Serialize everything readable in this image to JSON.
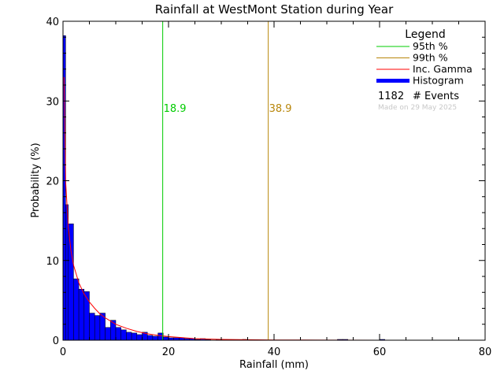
{
  "chart_data": {
    "type": "bar",
    "title": "Rainfall at WestMont Station during Year",
    "xlabel": "Rainfall (mm)",
    "ylabel": "Probability (%)",
    "xlim": [
      0,
      80
    ],
    "ylim": [
      0,
      40
    ],
    "x_ticks": [
      "0",
      "20",
      "40",
      "60",
      "80"
    ],
    "y_ticks": [
      "0",
      "10",
      "20",
      "30",
      "40"
    ],
    "grid": false,
    "legend_position": "top-right",
    "bin_width": 1,
    "histogram": {
      "name": "Histogram",
      "color": "#0000ff",
      "x": [
        0,
        1,
        2,
        3,
        4,
        5,
        6,
        7,
        8,
        9,
        10,
        11,
        12,
        13,
        14,
        15,
        16,
        17,
        18,
        19,
        20,
        21,
        22,
        23,
        24,
        25,
        26,
        27,
        28,
        29,
        30,
        31,
        32,
        33,
        34,
        35,
        36,
        37,
        38,
        39,
        40,
        41,
        42,
        43,
        44,
        45,
        46,
        47,
        48,
        49,
        50,
        51,
        52,
        53,
        54,
        55,
        56,
        57,
        58,
        59,
        60,
        61
      ],
      "values": [
        38.2,
        14.6,
        7.7,
        6.4,
        6.1,
        3.4,
        3.1,
        3.4,
        1.6,
        2.5,
        1.6,
        1.3,
        1.0,
        0.9,
        0.7,
        1.0,
        0.6,
        0.5,
        0.9,
        0.4,
        0.3,
        0.3,
        0.3,
        0.2,
        0.2,
        0.1,
        0.2,
        0.1,
        0.0,
        0.1,
        0.0,
        0.0,
        0.0,
        0.0,
        0.1,
        0.0,
        0.0,
        0.0,
        0.0,
        0.0,
        0.0,
        0.0,
        0.0,
        0.0,
        0.0,
        0.0,
        0.0,
        0.0,
        0.0,
        0.0,
        0.0,
        0.0,
        0.1,
        0.1,
        0.0,
        0.0,
        0.0,
        0.0,
        0.0,
        0.0,
        0.1,
        0.0
      ]
    },
    "first_bin_split": [
      {
        "x0": 0,
        "x1": 0.5,
        "value": 38.2
      },
      {
        "x0": 0.5,
        "x1": 1,
        "value": 17.0
      }
    ],
    "gamma_curve": {
      "name": "Inc. Gamma",
      "color": "#ff0000",
      "x": [
        0.2,
        0.5,
        1,
        1.5,
        2,
        3,
        4,
        5,
        6,
        7,
        8,
        10,
        12,
        14,
        16,
        18,
        20,
        25,
        30,
        40,
        50,
        60,
        80
      ],
      "y": [
        33.0,
        20.0,
        14.2,
        11.3,
        9.4,
        7.2,
        5.8,
        4.8,
        4.0,
        3.3,
        2.8,
        2.0,
        1.5,
        1.1,
        0.8,
        0.6,
        0.45,
        0.2,
        0.1,
        0.03,
        0.01,
        0.0,
        0.0
      ]
    },
    "percentile_lines": [
      {
        "name": "95th %",
        "x": 18.9,
        "label": "18.9",
        "color": "#00cc00"
      },
      {
        "name": "99th %",
        "x": 38.9,
        "label": "38.9",
        "color": "#b8860b"
      }
    ],
    "legend": {
      "title": "Legend",
      "entries": [
        {
          "label": "95th %",
          "color": "#00cc00",
          "style": "line"
        },
        {
          "label": "99th %",
          "color": "#b8860b",
          "style": "line"
        },
        {
          "label": "Inc. Gamma",
          "color": "#ff0000",
          "style": "line"
        },
        {
          "label": "Histogram",
          "color": "#0000ff",
          "style": "thick"
        }
      ],
      "events_count": "1182",
      "events_label": "# Events",
      "made_on": "Made on 29 May 2025"
    }
  }
}
